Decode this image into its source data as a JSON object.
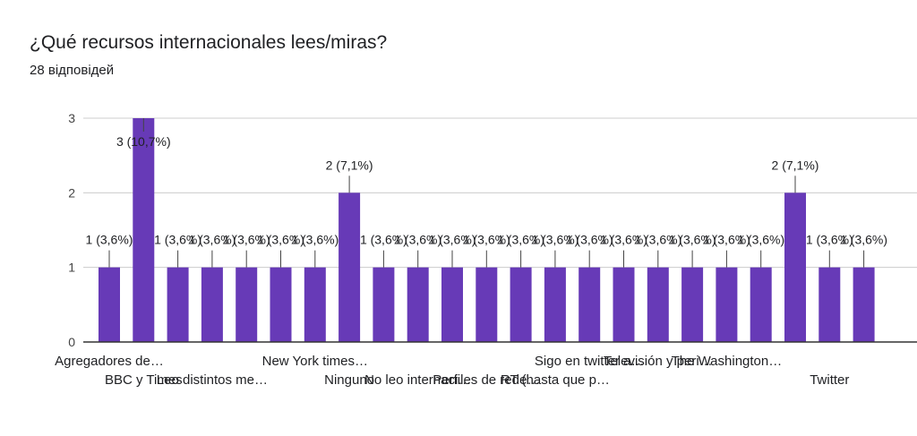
{
  "title": "¿Qué recursos internacionales lees/miras?",
  "subtitle": "28 відповідей",
  "colors": {
    "bar": "#673ab7",
    "grid": "#cccccc",
    "text": "#202124",
    "tick": "#444444",
    "axis": "#333333"
  },
  "chart_data": {
    "type": "bar",
    "ylim": [
      0,
      3
    ],
    "yticks": [
      "0",
      "1",
      "2",
      "3"
    ],
    "grid": true,
    "legend": "none",
    "categories": [
      "Agregadores de…",
      "BBC y Times",
      "",
      "Leo distintos me…",
      "",
      "",
      "New York times…",
      "Ninguno",
      "",
      "No leo internaci…",
      "",
      "Perfiles de rede…",
      "",
      "RT (hasta que p…",
      "Sigo en twitter a…",
      "",
      "Televisión y peri…",
      "",
      "The Washington…",
      "",
      "",
      "Twitter",
      ""
    ],
    "values": [
      1,
      3,
      1,
      1,
      1,
      1,
      1,
      2,
      1,
      1,
      1,
      1,
      1,
      1,
      1,
      1,
      1,
      1,
      1,
      1,
      2,
      1,
      1
    ],
    "data_labels": [
      "1 (3,6%)",
      "3 (10,7%)",
      "1 (3,6%)",
      "1 (3,6%)",
      "1 (3,6%)",
      "1 (3,6%)",
      "1 (3,6%)",
      "2 (7,1%)",
      "1 (3,6%)",
      "1 (3,6%)",
      "1 (3,6%)",
      "1 (3,6%)",
      "1 (3,6%)",
      "1 (3,6%)",
      "1 (3,6%)",
      "1 (3,6%)",
      "1 (3,6%)",
      "1 (3,6%)",
      "1 (3,6%)",
      "1 (3,6%)",
      "2 (7,1%)",
      "1 (3,6%)",
      "1 (3,6%)"
    ]
  }
}
